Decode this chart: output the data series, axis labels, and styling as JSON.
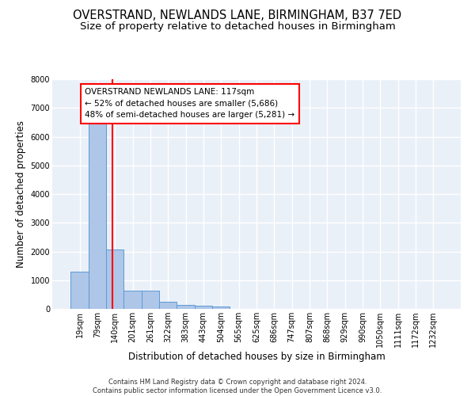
{
  "title_line1": "OVERSTRAND, NEWLANDS LANE, BIRMINGHAM, B37 7ED",
  "title_line2": "Size of property relative to detached houses in Birmingham",
  "xlabel": "Distribution of detached houses by size in Birmingham",
  "ylabel": "Number of detached properties",
  "footnote": "Contains HM Land Registry data © Crown copyright and database right 2024.\nContains public sector information licensed under the Open Government Licence v3.0.",
  "bin_labels": [
    "19sqm",
    "79sqm",
    "140sqm",
    "201sqm",
    "261sqm",
    "322sqm",
    "383sqm",
    "443sqm",
    "504sqm",
    "565sqm",
    "625sqm",
    "686sqm",
    "747sqm",
    "807sqm",
    "868sqm",
    "929sqm",
    "990sqm",
    "1050sqm",
    "1111sqm",
    "1172sqm",
    "1232sqm"
  ],
  "bar_values": [
    1300,
    6550,
    2080,
    640,
    640,
    250,
    130,
    100,
    70,
    0,
    0,
    0,
    0,
    0,
    0,
    0,
    0,
    0,
    0,
    0,
    0
  ],
  "bar_color": "#aec6e8",
  "bar_edgecolor": "#5b9bd5",
  "vline_x": 1.85,
  "vline_color": "red",
  "annotation_text": "OVERSTRAND NEWLANDS LANE: 117sqm\n← 52% of detached houses are smaller (5,686)\n48% of semi-detached houses are larger (5,281) →",
  "annotation_box_facecolor": "white",
  "annotation_box_edgecolor": "red",
  "ylim": [
    0,
    8000
  ],
  "yticks": [
    0,
    1000,
    2000,
    3000,
    4000,
    5000,
    6000,
    7000,
    8000
  ],
  "background_color": "#eaf0f8",
  "grid_color": "white",
  "title_fontsize": 10.5,
  "subtitle_fontsize": 9.5,
  "axis_label_fontsize": 8.5,
  "tick_fontsize": 7,
  "annotation_fontsize": 7.5,
  "footnote_fontsize": 6.0
}
